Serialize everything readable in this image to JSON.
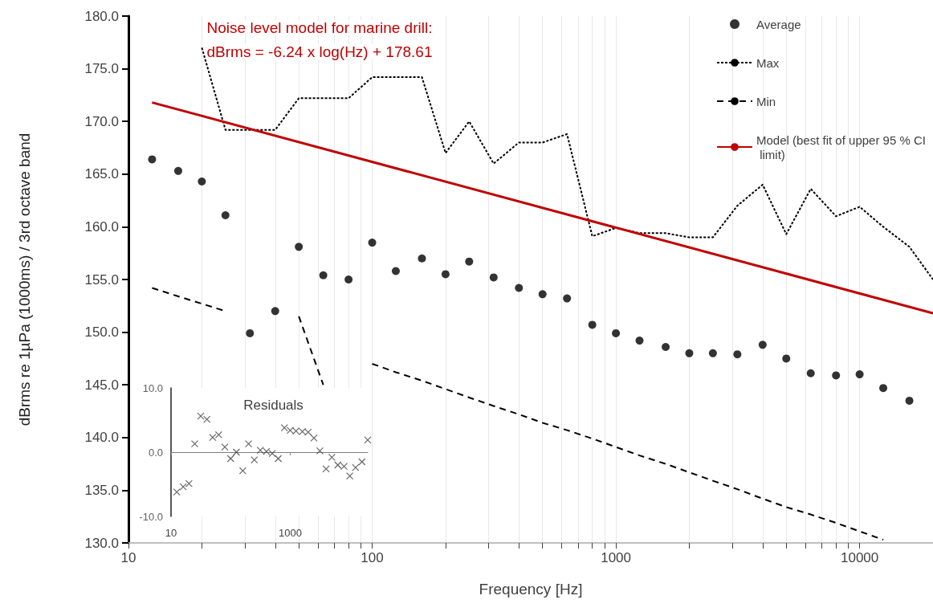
{
  "chart_data": [
    {
      "type": "line",
      "xlabel": "Frequency [Hz]",
      "ylabel": "dBrms re 1µPa (1000ms) / 3rd octave band",
      "annotations": [
        "Noise level model for marine drill:",
        "dBrms = -6.24 x log(Hz) + 178.61"
      ],
      "x": [
        12.5,
        16,
        20,
        25,
        31.5,
        40,
        50,
        63,
        80,
        100,
        125,
        160,
        200,
        250,
        315,
        400,
        500,
        630,
        800,
        1000,
        1250,
        1600,
        2000,
        2500,
        3150,
        4000,
        5000,
        6300,
        8000,
        10000,
        12500,
        16000,
        20000
      ],
      "series": [
        {
          "name": "Average",
          "type": "scatter",
          "marker": "circle",
          "color": "#000000",
          "values": [
            166.4,
            165.3,
            164.3,
            161.1,
            149.9,
            152.0,
            158.1,
            155.4,
            155.0,
            158.5,
            155.8,
            157.0,
            155.5,
            156.7,
            155.2,
            154.2,
            153.6,
            153.2,
            150.7,
            149.9,
            149.2,
            148.6,
            148.0,
            148.0,
            147.9,
            148.8,
            147.5,
            146.1,
            145.9,
            146.0,
            144.7,
            143.5,
            null
          ]
        },
        {
          "name": "Max",
          "line_style": "dotted",
          "color": "#000000",
          "values": [
            null,
            null,
            177.0,
            169.2,
            169.2,
            169.2,
            172.2,
            172.2,
            172.2,
            174.2,
            174.2,
            174.2,
            167.0,
            170.0,
            166.0,
            168.0,
            168.0,
            168.8,
            159.1,
            159.9,
            159.4,
            159.4,
            159.0,
            159.0,
            162.0,
            164.0,
            159.3,
            163.6,
            161.0,
            161.9,
            160.0,
            158.1,
            155.0
          ]
        },
        {
          "name": "Min",
          "line_style": "dashed",
          "color": "#000000",
          "values": [
            154.2,
            153.4,
            152.7,
            152.0,
            null,
            null,
            151.5,
            145.0,
            null,
            147.0,
            146.2,
            145.4,
            144.6,
            143.8,
            143.0,
            142.2,
            141.4,
            140.7,
            139.9,
            139.1,
            138.3,
            137.5,
            136.7,
            135.9,
            135.1,
            134.2,
            133.4,
            132.7,
            131.9,
            131.1,
            130.3,
            null,
            null
          ]
        },
        {
          "name": "Model (best fit of upper 95 % CI limit)",
          "line_style": "solid",
          "color": "#c00000",
          "x": [
            12.5,
            20000
          ],
          "values": [
            171.8,
            151.8
          ]
        }
      ],
      "log": "x",
      "xlim": [
        10,
        20000
      ],
      "xticks": [
        10,
        {
          "value": 20,
          "label": null
        },
        {
          "value": 30,
          "label": null
        },
        {
          "value": 40,
          "label": null
        },
        {
          "value": 50,
          "label": null
        },
        {
          "value": 60,
          "label": null
        },
        {
          "value": 70,
          "label": null
        },
        {
          "value": 80,
          "label": null
        },
        {
          "value": 90,
          "label": null
        },
        100,
        {
          "value": 200,
          "label": null
        },
        {
          "value": 300,
          "label": null
        },
        {
          "value": 400,
          "label": null
        },
        {
          "value": 500,
          "label": null
        },
        {
          "value": 600,
          "label": null
        },
        {
          "value": 700,
          "label": null
        },
        {
          "value": 800,
          "label": null
        },
        {
          "value": 900,
          "label": null
        },
        1000,
        {
          "value": 2000,
          "label": null
        },
        {
          "value": 3000,
          "label": null
        },
        {
          "value": 4000,
          "label": null
        },
        {
          "value": 5000,
          "label": null
        },
        {
          "value": 6000,
          "label": null
        },
        {
          "value": 7000,
          "label": null
        },
        {
          "value": 8000,
          "label": null
        },
        {
          "value": 9000,
          "label": null
        },
        10000
      ],
      "ylim": [
        130,
        180
      ],
      "yticks": [
        {
          "value": 130,
          "label": "130.0"
        },
        {
          "value": 135,
          "label": "135.0"
        },
        {
          "value": 140,
          "label": "140.0"
        },
        {
          "value": 145,
          "label": "145.0"
        },
        {
          "value": 150,
          "label": "150.0"
        },
        {
          "value": 155,
          "label": "155.0"
        },
        {
          "value": 160,
          "label": "160.0"
        },
        {
          "value": 165,
          "label": "165.0"
        },
        {
          "value": 170,
          "label": "170.0"
        },
        {
          "value": 175,
          "label": "175.0"
        },
        {
          "value": 180,
          "label": "180.0"
        }
      ],
      "grid": "x",
      "legend": "top right"
    },
    {
      "type": "scatter",
      "title": "Residuals",
      "marker": "cross",
      "color": "#404040",
      "x": [
        12.5,
        16,
        20,
        25,
        31.5,
        40,
        50,
        63,
        80,
        100,
        125,
        160,
        200,
        250,
        315,
        400,
        500,
        630,
        800,
        1000,
        1250,
        1600,
        2000,
        2500,
        3150,
        4000,
        5000,
        6300,
        8000,
        10000,
        12500,
        16000,
        20000
      ],
      "values": [
        -6.2,
        -5.4,
        -4.9,
        1.3,
        5.6,
        5.1,
        2.3,
        2.7,
        0.8,
        -1.0,
        0.0,
        -2.9,
        1.3,
        -1.2,
        0.3,
        0.1,
        -0.2,
        -1.0,
        3.8,
        3.4,
        3.3,
        3.2,
        3.1,
        2.2,
        0.2,
        -2.6,
        -0.8,
        -2.0,
        -2.2,
        -3.7,
        -2.4,
        -1.5,
        1.9
      ],
      "log": "x",
      "xlim": [
        10,
        20000
      ],
      "xticks": [
        10,
        1000
      ],
      "ylim": [
        -10,
        10
      ],
      "yticks": [
        {
          "value": -10,
          "label": "-10.0"
        },
        {
          "value": 0,
          "label": "0.0"
        },
        {
          "value": 10,
          "label": "10.0"
        }
      ]
    }
  ]
}
